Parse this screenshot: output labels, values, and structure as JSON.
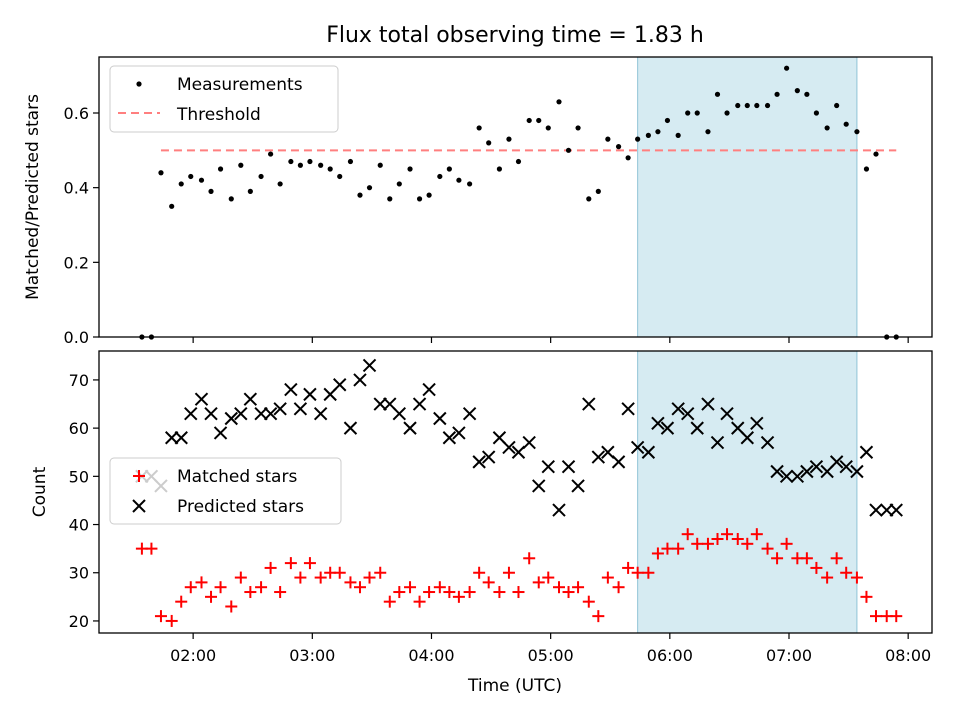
{
  "chart_data": [
    {
      "type": "scatter",
      "title": "Flux total observing time = 1.83 h",
      "xlabel": "",
      "ylabel": "Matched/Predicted stars",
      "ylim": [
        0,
        0.75
      ],
      "yticks": [
        "0.0",
        "0.2",
        "0.4",
        "0.6"
      ],
      "ytick_values": [
        0,
        0.2,
        0.4,
        0.6
      ],
      "xlim": [
        1.21,
        8.2
      ],
      "highlight_span": [
        5.73,
        7.57
      ],
      "threshold": {
        "name": "Threshold",
        "value": 0.5,
        "x_range": [
          1.73,
          7.9
        ],
        "color": "#ff7f7f"
      },
      "legend": {
        "placement": "top-left",
        "entries": [
          "Measurements",
          "Threshold"
        ]
      },
      "series": [
        {
          "name": "Measurements",
          "color": "#000000",
          "x": [
            1.57,
            1.65,
            1.73,
            1.82,
            1.9,
            1.98,
            2.07,
            2.15,
            2.23,
            2.32,
            2.4,
            2.48,
            2.57,
            2.65,
            2.73,
            2.82,
            2.9,
            2.98,
            3.07,
            3.15,
            3.23,
            3.32,
            3.4,
            3.48,
            3.57,
            3.65,
            3.73,
            3.82,
            3.9,
            3.98,
            4.07,
            4.15,
            4.23,
            4.32,
            4.4,
            4.48,
            4.57,
            4.65,
            4.73,
            4.82,
            4.9,
            4.98,
            5.07,
            5.15,
            5.23,
            5.32,
            5.4,
            5.48,
            5.57,
            5.65,
            5.73,
            5.82,
            5.9,
            5.98,
            6.07,
            6.15,
            6.23,
            6.32,
            6.4,
            6.48,
            6.57,
            6.65,
            6.73,
            6.82,
            6.9,
            6.98,
            7.07,
            7.15,
            7.23,
            7.32,
            7.4,
            7.48,
            7.57,
            7.65,
            7.73,
            7.82,
            7.9
          ],
          "y": [
            0.0,
            0.0,
            0.44,
            0.35,
            0.41,
            0.43,
            0.42,
            0.39,
            0.45,
            0.37,
            0.46,
            0.39,
            0.43,
            0.49,
            0.41,
            0.47,
            0.46,
            0.47,
            0.46,
            0.45,
            0.43,
            0.47,
            0.38,
            0.4,
            0.46,
            0.37,
            0.41,
            0.45,
            0.37,
            0.38,
            0.43,
            0.45,
            0.42,
            0.41,
            0.56,
            0.52,
            0.45,
            0.53,
            0.47,
            0.58,
            0.58,
            0.56,
            0.63,
            0.5,
            0.56,
            0.37,
            0.39,
            0.53,
            0.51,
            0.48,
            0.53,
            0.54,
            0.55,
            0.58,
            0.54,
            0.6,
            0.6,
            0.55,
            0.65,
            0.6,
            0.62,
            0.62,
            0.62,
            0.62,
            0.65,
            0.72,
            0.66,
            0.65,
            0.6,
            0.56,
            0.62,
            0.57,
            0.55,
            0.45,
            0.49,
            0.0,
            0.0
          ]
        }
      ]
    },
    {
      "type": "scatter",
      "title": "",
      "xlabel": "Time (UTC)",
      "ylabel": "Count",
      "ylim": [
        17.5,
        76
      ],
      "yticks": [
        "20",
        "30",
        "40",
        "50",
        "60",
        "70"
      ],
      "ytick_values": [
        20,
        30,
        40,
        50,
        60,
        70
      ],
      "xlim": [
        1.21,
        8.2
      ],
      "xticks": [
        "02:00",
        "03:00",
        "04:00",
        "05:00",
        "06:00",
        "07:00",
        "08:00"
      ],
      "xtick_values": [
        2,
        3,
        4,
        5,
        6,
        7,
        8
      ],
      "highlight_span": [
        5.73,
        7.57
      ],
      "legend": {
        "placement": "center-left",
        "entries": [
          "Matched stars",
          "Predicted stars"
        ]
      },
      "series": [
        {
          "name": "Matched stars",
          "marker": "plus",
          "color": "#ff0000",
          "x": [
            1.57,
            1.65,
            1.73,
            1.82,
            1.9,
            1.98,
            2.07,
            2.15,
            2.23,
            2.32,
            2.4,
            2.48,
            2.57,
            2.65,
            2.73,
            2.82,
            2.9,
            2.98,
            3.07,
            3.15,
            3.23,
            3.32,
            3.4,
            3.48,
            3.57,
            3.65,
            3.73,
            3.82,
            3.9,
            3.98,
            4.07,
            4.15,
            4.23,
            4.32,
            4.4,
            4.48,
            4.57,
            4.65,
            4.73,
            4.82,
            4.9,
            4.98,
            5.07,
            5.15,
            5.23,
            5.32,
            5.4,
            5.48,
            5.57,
            5.65,
            5.73,
            5.82,
            5.9,
            5.98,
            6.07,
            6.15,
            6.23,
            6.32,
            6.4,
            6.48,
            6.57,
            6.65,
            6.73,
            6.82,
            6.9,
            6.98,
            7.07,
            7.15,
            7.23,
            7.32,
            7.4,
            7.48,
            7.57,
            7.65,
            7.73,
            7.82,
            7.9
          ],
          "y": [
            35,
            35,
            21,
            20,
            24,
            27,
            28,
            25,
            27,
            23,
            29,
            26,
            27,
            31,
            26,
            32,
            29,
            32,
            29,
            30,
            30,
            28,
            27,
            29,
            30,
            24,
            26,
            27,
            24,
            26,
            27,
            26,
            25,
            26,
            30,
            28,
            26,
            30,
            26,
            33,
            28,
            29,
            27,
            26,
            27,
            24,
            21,
            29,
            27,
            31,
            30,
            30,
            34,
            35,
            35,
            38,
            36,
            36,
            37,
            38,
            37,
            36,
            38,
            35,
            33,
            36,
            33,
            33,
            31,
            29,
            33,
            30,
            29,
            25,
            21,
            21,
            21
          ]
        },
        {
          "name": "Predicted stars",
          "marker": "x",
          "color": "#000000",
          "x": [
            1.57,
            1.65,
            1.73,
            1.82,
            1.9,
            1.98,
            2.07,
            2.15,
            2.23,
            2.32,
            2.4,
            2.48,
            2.57,
            2.65,
            2.73,
            2.82,
            2.9,
            2.98,
            3.07,
            3.15,
            3.23,
            3.32,
            3.4,
            3.48,
            3.57,
            3.65,
            3.73,
            3.82,
            3.9,
            3.98,
            4.07,
            4.15,
            4.23,
            4.32,
            4.4,
            4.48,
            4.57,
            4.65,
            4.73,
            4.82,
            4.9,
            4.98,
            5.07,
            5.15,
            5.23,
            5.32,
            5.4,
            5.48,
            5.57,
            5.65,
            5.73,
            5.82,
            5.9,
            5.98,
            6.07,
            6.15,
            6.23,
            6.32,
            6.4,
            6.48,
            6.57,
            6.65,
            6.73,
            6.82,
            6.9,
            6.98,
            7.07,
            7.15,
            7.23,
            7.32,
            7.4,
            7.48,
            7.57,
            7.65,
            7.73,
            7.82,
            7.9
          ],
          "y": [
            50,
            50,
            48,
            58,
            58,
            63,
            66,
            63,
            59,
            62,
            63,
            66,
            63,
            63,
            64,
            68,
            64,
            67,
            63,
            67,
            69,
            60,
            70,
            73,
            65,
            65,
            63,
            60,
            65,
            68,
            62,
            58,
            59,
            63,
            53,
            54,
            58,
            56,
            55,
            57,
            48,
            52,
            43,
            52,
            48,
            65,
            54,
            55,
            53,
            64,
            56,
            55,
            61,
            60,
            64,
            63,
            60,
            65,
            57,
            63,
            60,
            58,
            61,
            57,
            51,
            50,
            50,
            51,
            52,
            51,
            53,
            52,
            51,
            55,
            43,
            43,
            43
          ]
        }
      ]
    }
  ]
}
